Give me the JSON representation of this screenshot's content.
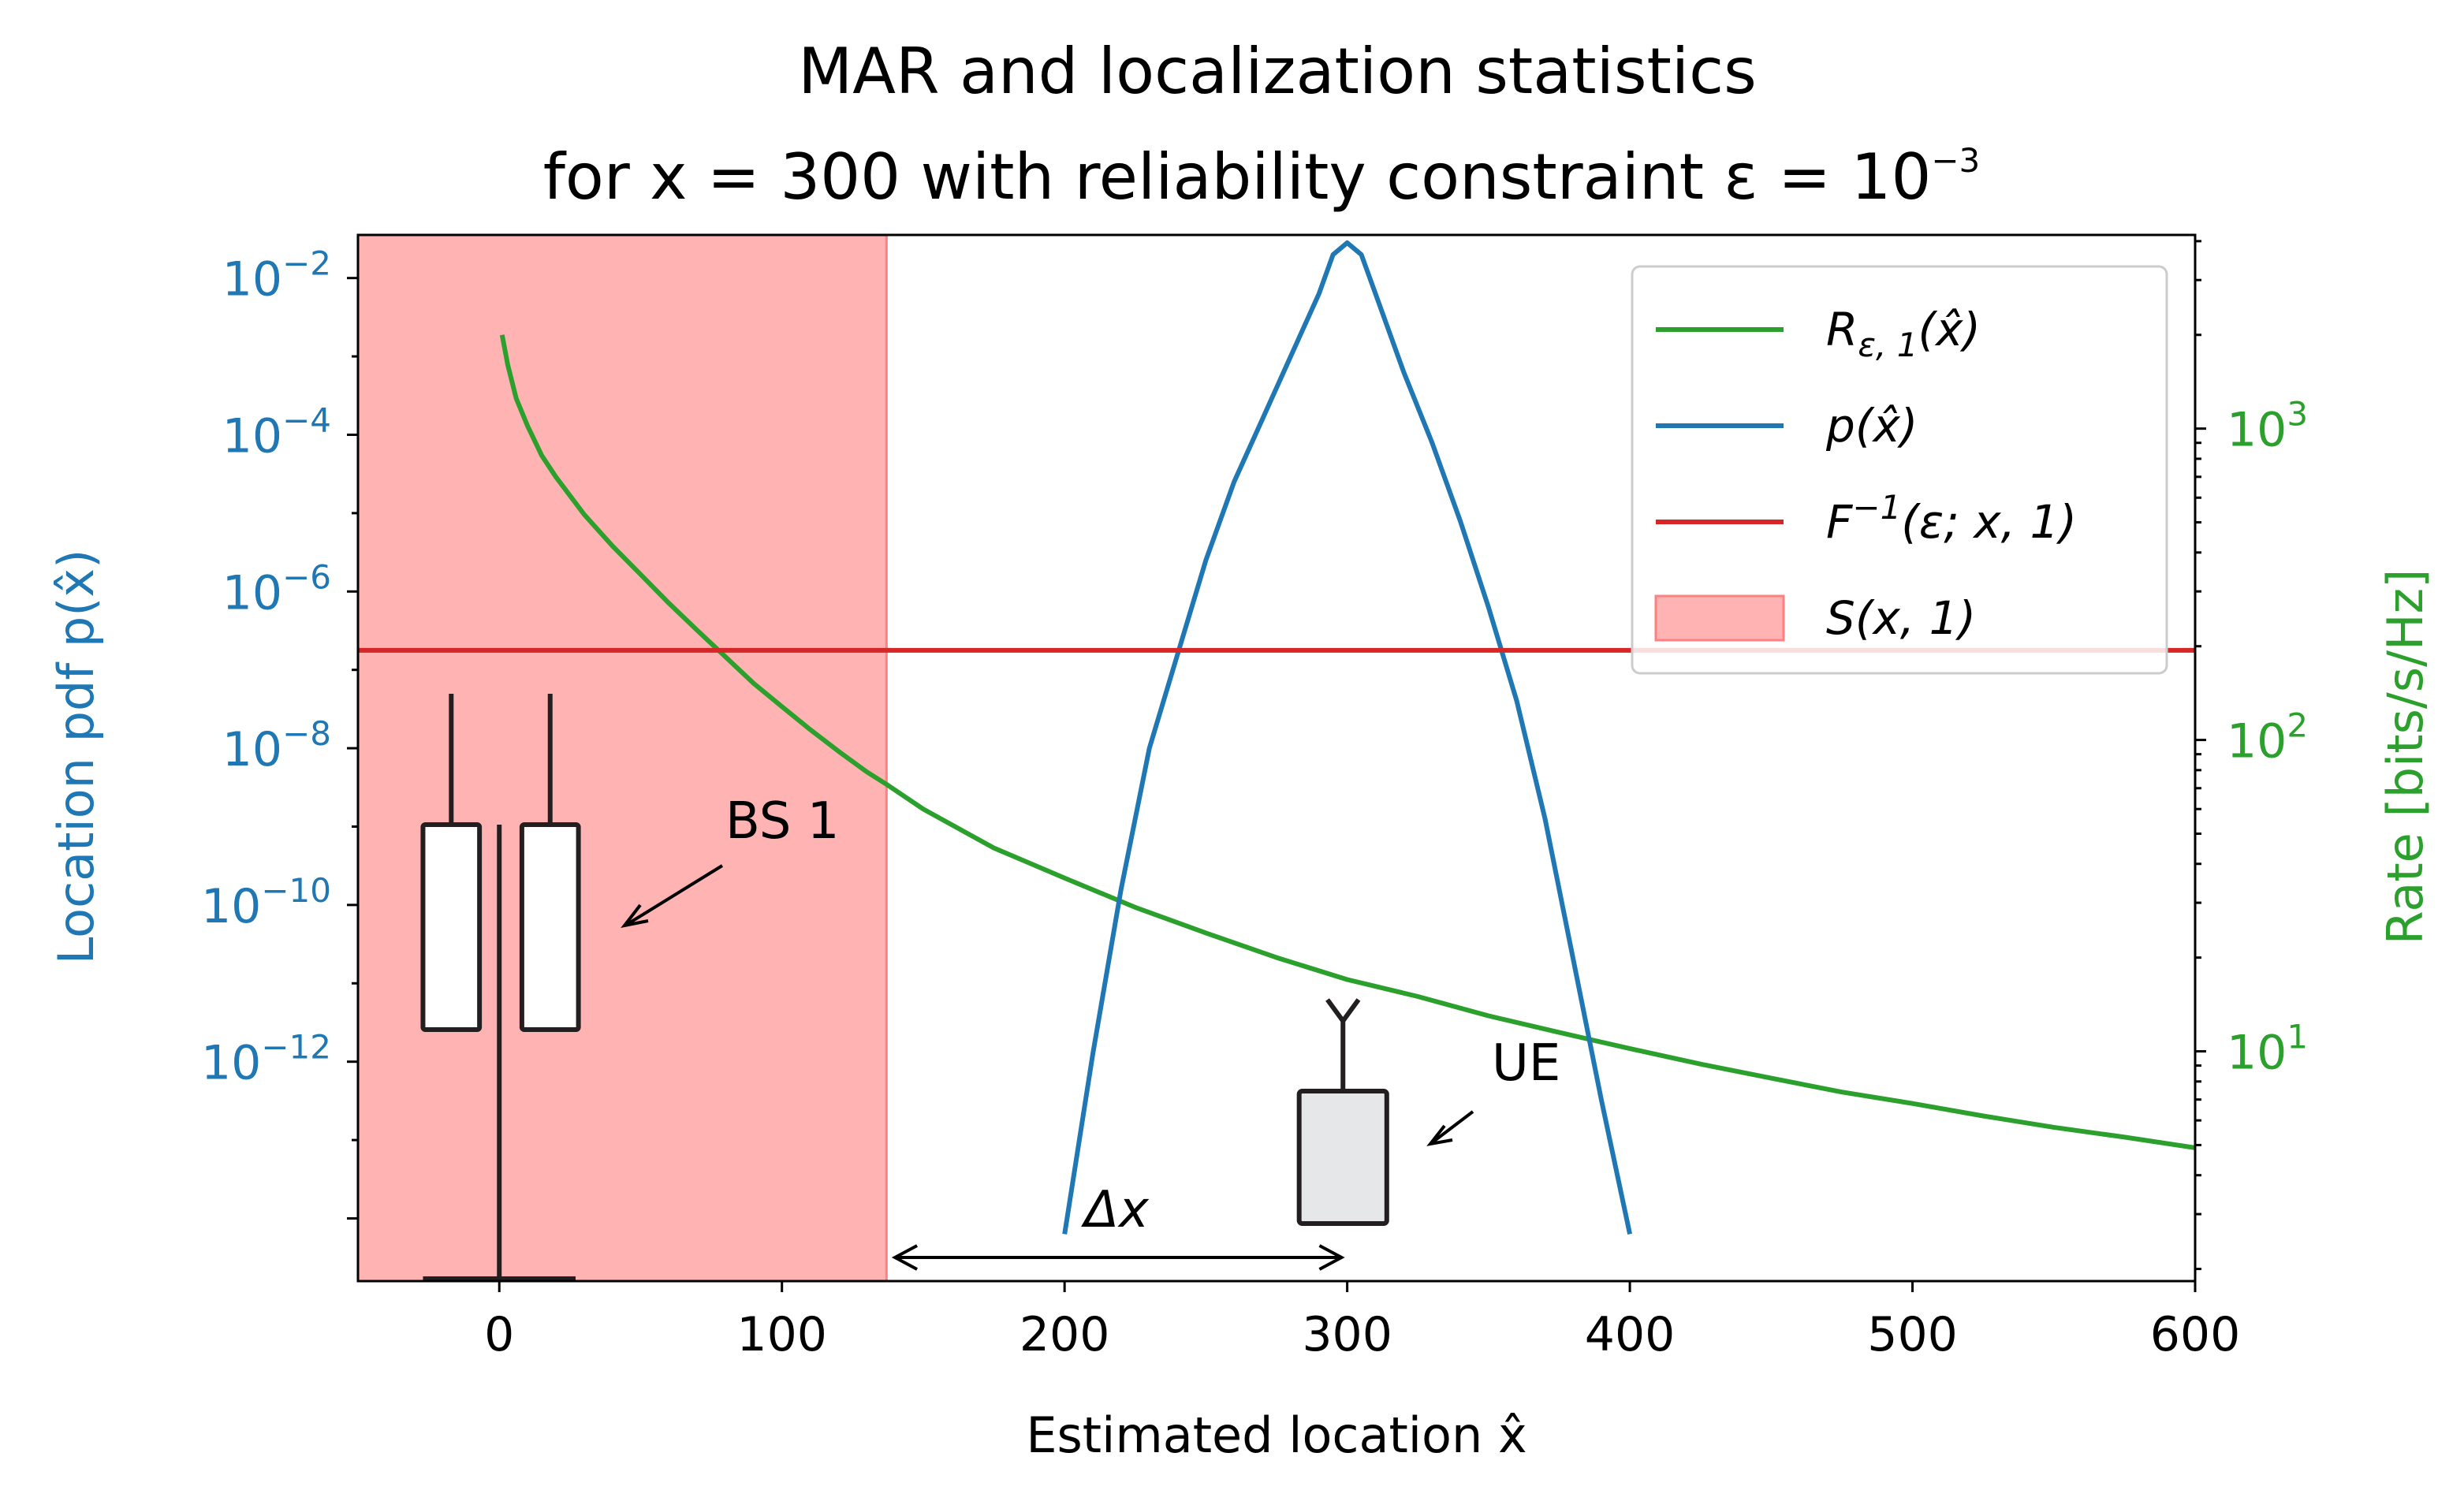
{
  "chart_data": {
    "type": "line",
    "title_line1": "MAR and localization statistics",
    "title_line2": "for x = 300 with reliability constraint ε = 10",
    "title_exp": "−3",
    "xlabel": "Estimated location x̂",
    "ylabel_left": "Location pdf p(x̂)",
    "ylabel_right": "Rate [bits/s/Hz]",
    "xlim": [
      -50,
      600
    ],
    "x_ticks": [
      0,
      100,
      200,
      300,
      400,
      500,
      600
    ],
    "y_left_scale": "log",
    "y_left_lim_exp": [
      -14.8,
      -1.45
    ],
    "y_left_ticks": [
      {
        "exp": -2,
        "base": "10",
        "sup": "−2"
      },
      {
        "exp": -4,
        "base": "10",
        "sup": "−4"
      },
      {
        "exp": -6,
        "base": "10",
        "sup": "−6"
      },
      {
        "exp": -8,
        "base": "10",
        "sup": "−8"
      },
      {
        "exp": -10,
        "base": "10",
        "sup": "−10"
      },
      {
        "exp": -12,
        "base": "10",
        "sup": "−12"
      }
    ],
    "y_right_scale": "log",
    "y_right_lim_exp": [
      0.262,
      3.622
    ],
    "y_right_ticks": [
      {
        "exp": 3,
        "base": "10",
        "sup": "3"
      },
      {
        "exp": 2,
        "base": "10",
        "sup": "2"
      },
      {
        "exp": 1,
        "base": "10",
        "sup": "1"
      }
    ],
    "colors": {
      "rate": "#2ca02c",
      "pdf": "#1f77b4",
      "quantile": "#d62728",
      "region": "#ffb3b3",
      "region_edge": "#ff8080"
    },
    "legend": [
      {
        "label": "R",
        "sub": "ε, 1",
        "tail": "(x̂)",
        "kind": "line",
        "color": "#2ca02c"
      },
      {
        "label": "p(x̂)",
        "sub": "",
        "tail": "",
        "kind": "line",
        "color": "#1f77b4"
      },
      {
        "label": "F",
        "sup": "−1",
        "tail": "(ε; x, 1)",
        "kind": "line",
        "color": "#d62728"
      },
      {
        "label": "S(x, 1)",
        "sub": "",
        "tail": "",
        "kind": "patch",
        "color": "#ffb3b3"
      }
    ],
    "series": [
      {
        "name": "R_eps1(x_hat)",
        "axis": "right",
        "x": [
          1,
          3,
          6,
          10,
          15,
          20,
          30,
          40,
          50,
          60,
          70,
          80,
          90,
          100,
          110,
          120,
          130,
          137,
          150,
          175,
          200,
          225,
          250,
          275,
          300,
          325,
          350,
          375,
          400,
          425,
          450,
          475,
          500,
          525,
          550,
          575,
          600
        ],
        "y": [
          2000,
          1600,
          1250,
          1020,
          820,
          700,
          530,
          420,
          340,
          275,
          225,
          185,
          152,
          128,
          108,
          92,
          79,
          72,
          60,
          45,
          36,
          29,
          24,
          20,
          17,
          15,
          13,
          11.5,
          10.2,
          9.1,
          8.2,
          7.4,
          6.8,
          6.2,
          5.7,
          5.3,
          4.9
        ]
      },
      {
        "name": "p(x_hat)",
        "axis": "left",
        "x": [
          200,
          210,
          220,
          230,
          240,
          250,
          260,
          270,
          280,
          290,
          295,
          300,
          305,
          310,
          320,
          330,
          340,
          350,
          360,
          370,
          380,
          390,
          400
        ],
        "y_exp": [
          -14.2,
          -11.9,
          -9.8,
          -8.0,
          -6.8,
          -5.6,
          -4.6,
          -3.8,
          -3.0,
          -2.2,
          -1.7,
          -1.55,
          -1.7,
          -2.2,
          -3.2,
          -4.1,
          -5.1,
          -6.2,
          -7.4,
          -8.9,
          -10.7,
          -12.5,
          -14.2
        ]
      },
      {
        "name": "F^-1(eps; x, 1)",
        "axis": "left",
        "y_exp": -6.75
      }
    ],
    "region": {
      "name": "S(x, 1)",
      "x_range": [
        -50,
        137
      ]
    },
    "annotations": {
      "bs_label": "BS 1",
      "ue_label": "UE",
      "dx_label": "Δx",
      "dx_range": [
        140,
        298
      ]
    }
  }
}
